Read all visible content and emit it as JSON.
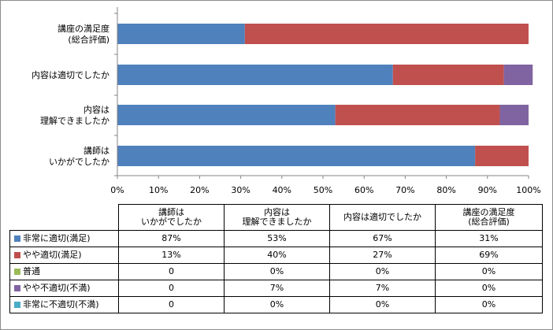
{
  "chart_data": {
    "type": "bar",
    "orientation": "horizontal",
    "stacked": true,
    "percent": true,
    "categories": [
      [
        "講座の満足度",
        "(総合評価)"
      ],
      [
        "内容は適切でしたか"
      ],
      [
        "内容は",
        "理解できましたか"
      ],
      [
        "講師は",
        "いかがでしたか"
      ]
    ],
    "series": [
      {
        "name": "非常に適切(満足)",
        "color": "#4f81bd",
        "values": [
          31,
          67,
          53,
          87
        ]
      },
      {
        "name": "やや適切(満足)",
        "color": "#c0504d",
        "values": [
          69,
          27,
          40,
          13
        ]
      },
      {
        "name": "普通",
        "color": "#9bbb59",
        "values": [
          0,
          0,
          0,
          0
        ]
      },
      {
        "name": "やや不適切(不満)",
        "color": "#8064a2",
        "values": [
          0,
          7,
          7,
          0
        ]
      },
      {
        "name": "非常に不適切(不満)",
        "color": "#4bacc6",
        "values": [
          0,
          0,
          0,
          0
        ]
      }
    ],
    "xlim": [
      0,
      100
    ],
    "xticks": [
      "0%",
      "10%",
      "20%",
      "30%",
      "40%",
      "50%",
      "60%",
      "70%",
      "80%",
      "90%",
      "100%"
    ],
    "grid": false,
    "legend": "data-table"
  },
  "table": {
    "columns": [
      [
        "講師は",
        "いかがでしたか"
      ],
      [
        "内容は",
        "理解できましたか"
      ],
      [
        "内容は適切でしたか"
      ],
      [
        "講座の満足度",
        "(総合評価)"
      ]
    ],
    "rows": [
      {
        "label": "非常に適切(満足)",
        "color": "#4f81bd",
        "cells": [
          "87%",
          "53%",
          "67%",
          "31%"
        ]
      },
      {
        "label": "やや適切(満足)",
        "color": "#c0504d",
        "cells": [
          "13%",
          "40%",
          "27%",
          "69%"
        ]
      },
      {
        "label": "普通",
        "color": "#9bbb59",
        "cells": [
          "0",
          "0%",
          "0%",
          "0%"
        ]
      },
      {
        "label": "やや不適切(不満)",
        "color": "#8064a2",
        "cells": [
          "0",
          "7%",
          "7%",
          "0%"
        ]
      },
      {
        "label": "非常に不適切(不満)",
        "color": "#4bacc6",
        "cells": [
          "0",
          "0%",
          "0%",
          "0%"
        ]
      }
    ]
  }
}
